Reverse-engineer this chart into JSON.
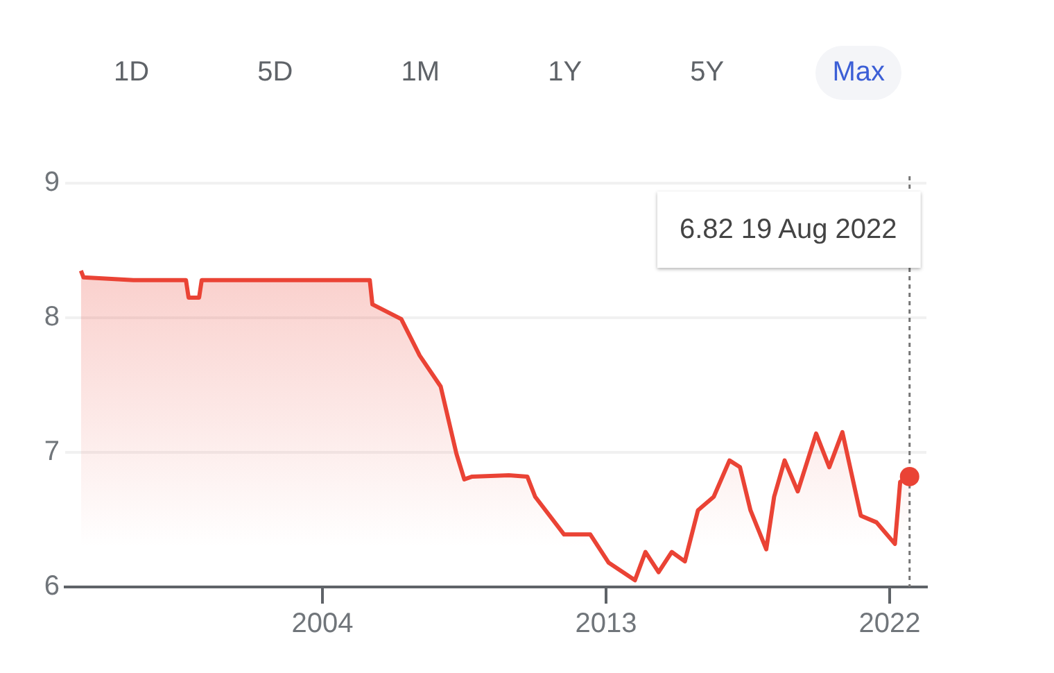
{
  "chart_data": {
    "type": "area",
    "x": [
      "1996-05",
      "1996-06",
      "1998-01",
      "1999-09",
      "1999-10",
      "2000-02",
      "2000-03",
      "2005-07",
      "2005-08",
      "2006-07",
      "2007-02",
      "2007-10",
      "2008-04",
      "2008-07",
      "2008-10",
      "2009-12",
      "2010-07",
      "2010-10",
      "2011-09",
      "2012-07",
      "2013-02",
      "2013-12",
      "2014-04",
      "2014-09",
      "2015-02",
      "2015-07",
      "2015-12",
      "2016-06",
      "2016-12",
      "2017-04",
      "2017-08",
      "2018-02",
      "2018-05",
      "2018-09",
      "2019-02",
      "2019-09",
      "2020-02",
      "2020-07",
      "2021-02",
      "2021-08",
      "2022-03",
      "2022-05",
      "2022-08-19"
    ],
    "series": [
      {
        "color": "#ea4335",
        "values": [
          8.35,
          8.3,
          8.28,
          8.28,
          8.15,
          8.15,
          8.28,
          8.28,
          8.1,
          7.99,
          7.72,
          7.49,
          6.99,
          6.8,
          6.82,
          6.83,
          6.82,
          6.67,
          6.39,
          6.39,
          6.18,
          6.05,
          6.26,
          6.11,
          6.26,
          6.19,
          6.57,
          6.67,
          6.94,
          6.89,
          6.57,
          6.28,
          6.67,
          6.94,
          6.71,
          7.14,
          6.89,
          7.15,
          6.53,
          6.48,
          6.32,
          6.78,
          6.82
        ]
      }
    ],
    "xlim": [
      "1995-11",
      "2023-03"
    ],
    "xticks": [
      "2004",
      "2013",
      "2022"
    ],
    "ylim": [
      6,
      9
    ],
    "yticks": [
      6,
      7,
      8,
      9
    ],
    "grid": "y",
    "legend": false,
    "ref_lines": [
      {
        "axis": "x",
        "value": "2022-08-19",
        "line_style": "dotted",
        "color": "#757575"
      }
    ],
    "annotations": [
      "1D",
      "5D",
      "1M",
      "1Y",
      "5Y",
      "Max",
      "6.82 19 Aug 2022"
    ]
  }
}
